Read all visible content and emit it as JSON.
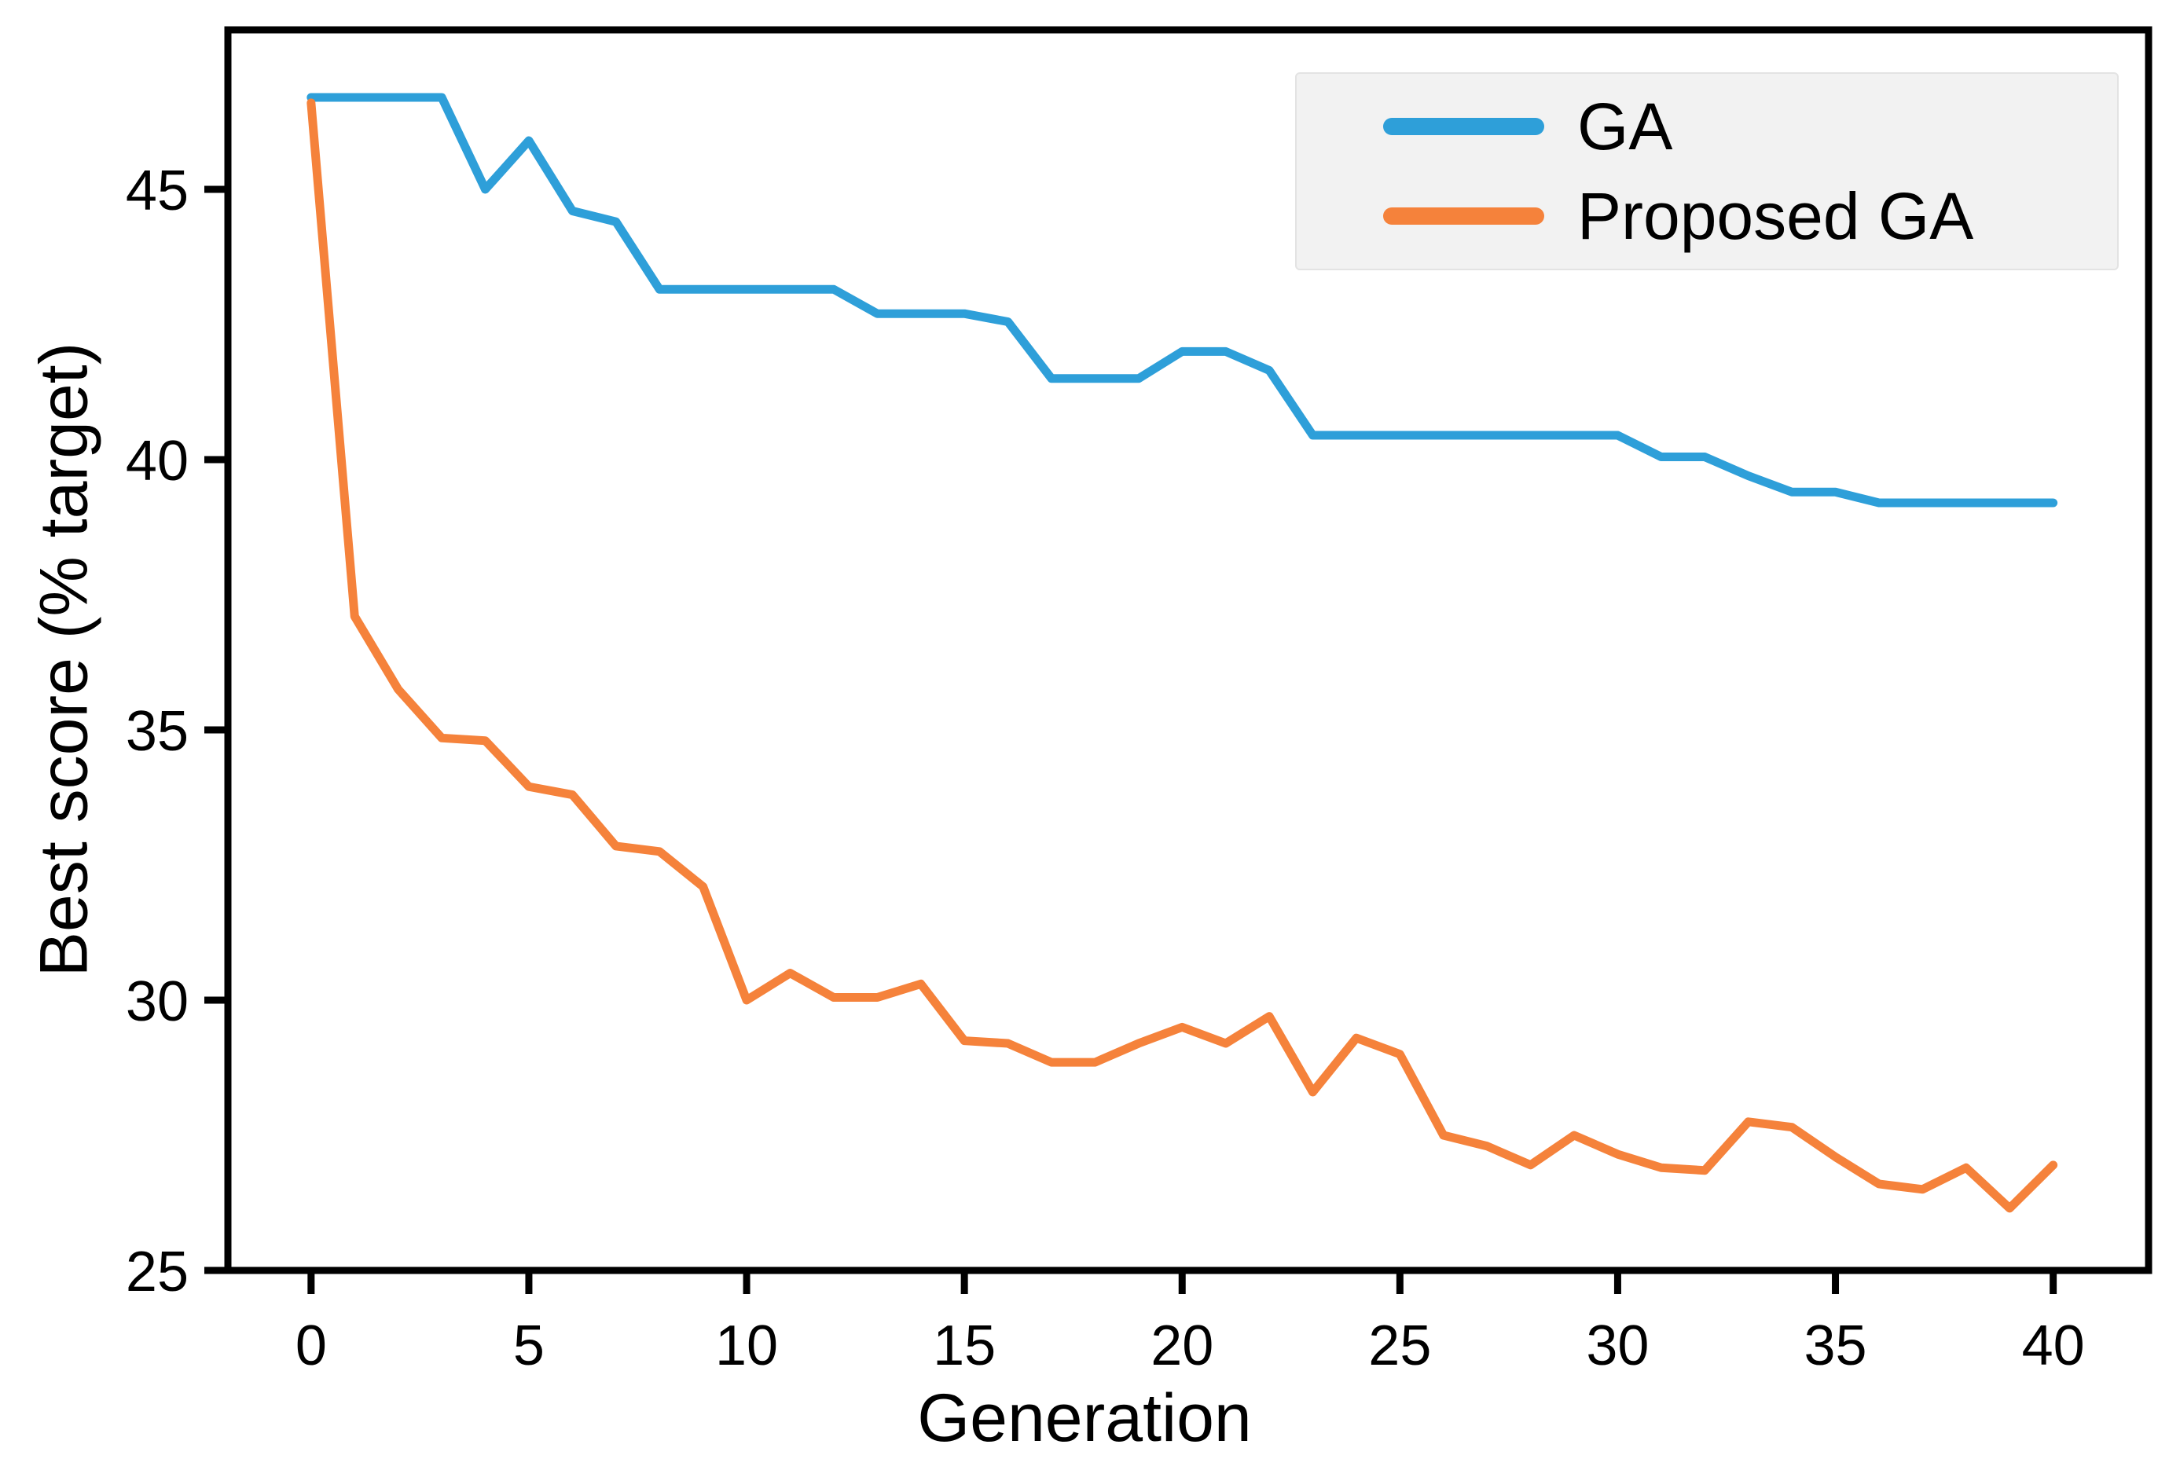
{
  "chart_data": {
    "type": "line",
    "title": "",
    "xlabel": "Generation",
    "ylabel": "Best score (% target)",
    "xlim": [
      -1.91,
      42.19
    ],
    "ylim": [
      25,
      47.95
    ],
    "xticks": [
      0,
      5,
      10,
      15,
      20,
      25,
      30,
      35,
      40
    ],
    "yticks": [
      25,
      30,
      35,
      40,
      45
    ],
    "grid": false,
    "legend": {
      "position": "upper right",
      "background": "#f2f2f2"
    },
    "x": [
      0,
      1,
      2,
      3,
      4,
      5,
      6,
      7,
      8,
      9,
      10,
      11,
      12,
      13,
      14,
      15,
      16,
      17,
      18,
      19,
      20,
      21,
      22,
      23,
      24,
      25,
      26,
      27,
      28,
      29,
      30,
      31,
      32,
      33,
      34,
      35,
      36,
      37,
      38,
      39,
      40
    ],
    "series": [
      {
        "name": "GA",
        "color": "#2E9FD9",
        "values": [
          46.7,
          46.7,
          46.7,
          46.7,
          45.0,
          45.9,
          44.6,
          44.4,
          43.15,
          43.15,
          43.15,
          43.15,
          43.15,
          42.7,
          42.7,
          42.7,
          42.55,
          41.5,
          41.5,
          41.5,
          42.0,
          42.0,
          41.65,
          40.45,
          40.45,
          40.45,
          40.45,
          40.45,
          40.45,
          40.45,
          40.45,
          40.05,
          40.05,
          39.7,
          39.4,
          39.4,
          39.2,
          39.2,
          39.2,
          39.2,
          39.2
        ]
      },
      {
        "name": "Proposed GA",
        "color": "#F5823B",
        "values": [
          46.6,
          37.1,
          35.75,
          34.85,
          34.8,
          33.95,
          33.8,
          32.85,
          32.75,
          32.1,
          30.0,
          30.5,
          30.05,
          30.05,
          30.3,
          29.25,
          29.2,
          28.85,
          28.85,
          29.2,
          29.5,
          29.2,
          29.7,
          28.3,
          29.3,
          29.0,
          27.5,
          27.3,
          26.95,
          27.5,
          27.15,
          26.9,
          26.85,
          27.75,
          27.65,
          27.1,
          26.6,
          26.5,
          26.9,
          26.15,
          26.95
        ]
      }
    ],
    "axis_color": "#000000",
    "tick_label_size": 72,
    "line_width": 11
  }
}
